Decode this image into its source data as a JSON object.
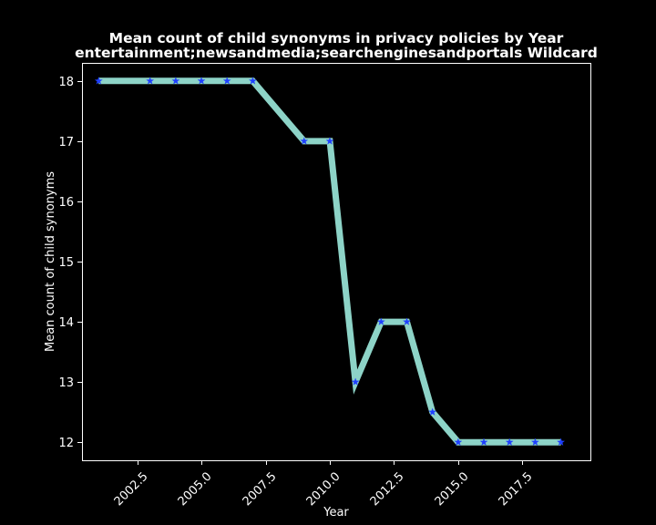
{
  "chart_data": {
    "type": "line",
    "title_line1": "Mean count of child synonyms in privacy policies by Year",
    "title_line2": "entertainment;newsandmedia;searchenginesandportals Wildcard",
    "xlabel": "Year",
    "ylabel": "Mean count of child synonyms",
    "xlim": [
      2000.35,
      2020.15
    ],
    "ylim": [
      11.7,
      18.3
    ],
    "x_ticks": [
      2002.5,
      2005.0,
      2007.5,
      2010.0,
      2012.5,
      2015.0,
      2017.5
    ],
    "x_tick_labels": [
      "2002.5",
      "2005.0",
      "2007.5",
      "2010.0",
      "2012.5",
      "2015.0",
      "2017.5"
    ],
    "y_ticks": [
      12,
      13,
      14,
      15,
      16,
      17,
      18
    ],
    "y_tick_labels": [
      "12",
      "13",
      "14",
      "15",
      "16",
      "17",
      "18"
    ],
    "grid": false,
    "series": [
      {
        "x": [
          2001,
          2003,
          2004,
          2005,
          2006,
          2007,
          2009,
          2010,
          2011,
          2012,
          2013,
          2014,
          2015,
          2016,
          2017,
          2018,
          2019
        ],
        "y": [
          18,
          18,
          18,
          18,
          18,
          18,
          17,
          17,
          13,
          14,
          14,
          12.5,
          12,
          12,
          12,
          12,
          12
        ],
        "line_color": "#8dd3c7",
        "marker_color": "#1f3fff",
        "marker": "star"
      }
    ],
    "background_color": "#000000",
    "axis_color": "#ffffff"
  }
}
